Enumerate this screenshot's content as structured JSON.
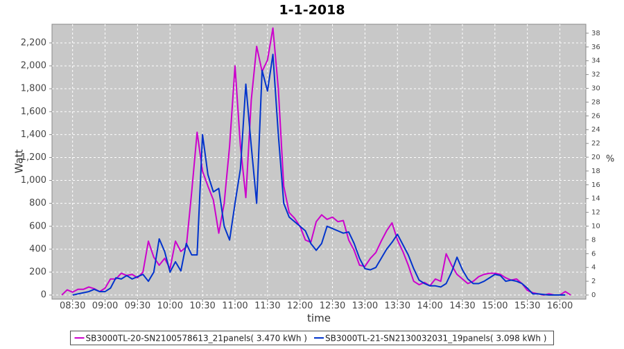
{
  "chart_data": {
    "type": "line",
    "title": "1-1-2018",
    "x_label": "time",
    "y_label": "Watt",
    "y2_label": "%",
    "x": [
      "08:20",
      "08:25",
      "08:30",
      "08:35",
      "08:40",
      "08:45",
      "08:50",
      "08:55",
      "09:00",
      "09:05",
      "09:10",
      "09:15",
      "09:20",
      "09:25",
      "09:30",
      "09:35",
      "09:40",
      "09:45",
      "09:50",
      "09:55",
      "10:00",
      "10:05",
      "10:10",
      "10:15",
      "10:20",
      "10:25",
      "10:30",
      "10:35",
      "10:40",
      "10:45",
      "10:50",
      "10:55",
      "11:00",
      "11:05",
      "11:10",
      "11:15",
      "11:20",
      "11:25",
      "11:30",
      "11:35",
      "11:40",
      "11:45",
      "11:50",
      "11:55",
      "12:00",
      "12:05",
      "12:10",
      "12:15",
      "12:20",
      "12:25",
      "12:30",
      "12:35",
      "12:40",
      "12:45",
      "12:50",
      "12:55",
      "13:00",
      "13:05",
      "13:10",
      "13:15",
      "13:20",
      "13:25",
      "13:30",
      "13:35",
      "13:40",
      "13:45",
      "13:50",
      "13:55",
      "14:00",
      "14:05",
      "14:10",
      "14:15",
      "14:20",
      "14:25",
      "14:30",
      "14:35",
      "14:40",
      "14:45",
      "14:50",
      "14:55",
      "15:00",
      "15:05",
      "15:10",
      "15:15",
      "15:20",
      "15:25",
      "15:30",
      "15:35",
      "15:40",
      "15:45",
      "15:50",
      "15:55",
      "16:00",
      "16:05",
      "16:10"
    ],
    "series": [
      {
        "name": "SB3000TL-20-SN2100578613_21panels( 3.470 kWh )",
        "color": "#cc00cc",
        "values": [
          0,
          45,
          25,
          50,
          50,
          70,
          55,
          30,
          60,
          140,
          140,
          190,
          170,
          180,
          150,
          200,
          470,
          330,
          260,
          320,
          230,
          470,
          380,
          420,
          900,
          1420,
          1080,
          950,
          830,
          540,
          800,
          1300,
          2000,
          1300,
          850,
          1700,
          2170,
          1950,
          2050,
          2330,
          1800,
          950,
          720,
          670,
          600,
          480,
          460,
          640,
          700,
          660,
          680,
          640,
          650,
          480,
          390,
          260,
          250,
          320,
          370,
          470,
          560,
          630,
          480,
          380,
          260,
          120,
          90,
          110,
          80,
          140,
          120,
          360,
          260,
          180,
          140,
          100,
          120,
          160,
          180,
          190,
          190,
          180,
          150,
          130,
          140,
          100,
          40,
          20,
          10,
          0,
          10,
          0,
          0,
          30,
          0
        ]
      },
      {
        "name": "SB3000TL-21-SN2130032031_19panels( 3.098 kWh )",
        "color": "#0033cc",
        "values": [
          null,
          null,
          0,
          10,
          20,
          30,
          50,
          30,
          30,
          60,
          150,
          140,
          170,
          140,
          160,
          180,
          120,
          200,
          490,
          380,
          200,
          290,
          210,
          450,
          350,
          350,
          1400,
          1050,
          900,
          930,
          600,
          480,
          800,
          1100,
          1840,
          1300,
          800,
          1960,
          1780,
          2100,
          1400,
          800,
          680,
          640,
          600,
          560,
          450,
          390,
          450,
          600,
          580,
          560,
          540,
          550,
          450,
          320,
          230,
          220,
          240,
          320,
          400,
          460,
          530,
          440,
          350,
          230,
          130,
          100,
          80,
          80,
          70,
          100,
          200,
          330,
          220,
          140,
          100,
          100,
          120,
          150,
          180,
          170,
          120,
          130,
          120,
          100,
          60,
          10,
          10,
          5,
          0,
          0,
          0,
          0,
          null
        ]
      }
    ],
    "xlim": [
      "08:11",
      "16:24"
    ],
    "xticks": [
      "08:30",
      "09:00",
      "09:30",
      "10:00",
      "10:30",
      "11:00",
      "11:30",
      "12:00",
      "12:30",
      "13:00",
      "13:30",
      "14:00",
      "14:30",
      "15:00",
      "15:30",
      "16:00"
    ],
    "ylim": [
      -36,
      2363
    ],
    "yticks": [
      0,
      200,
      400,
      600,
      800,
      {
        "value": 1000,
        "label": "1,000"
      },
      {
        "value": 1200,
        "label": "1,200"
      },
      {
        "value": 1400,
        "label": "1,400"
      },
      {
        "value": 1600,
        "label": "1,600"
      },
      {
        "value": 1800,
        "label": "1,800"
      },
      {
        "value": 2000,
        "label": "2,000"
      },
      {
        "value": 2200,
        "label": "2,200"
      }
    ],
    "y2lim": [
      -0.6,
      39.3
    ],
    "y2ticks": [
      0,
      2,
      4,
      6,
      8,
      10,
      12,
      14,
      16,
      18,
      20,
      22,
      24,
      26,
      28,
      30,
      32,
      34,
      36,
      38
    ],
    "grid": true,
    "background": "#c8c8c8",
    "legend": "bottom"
  }
}
